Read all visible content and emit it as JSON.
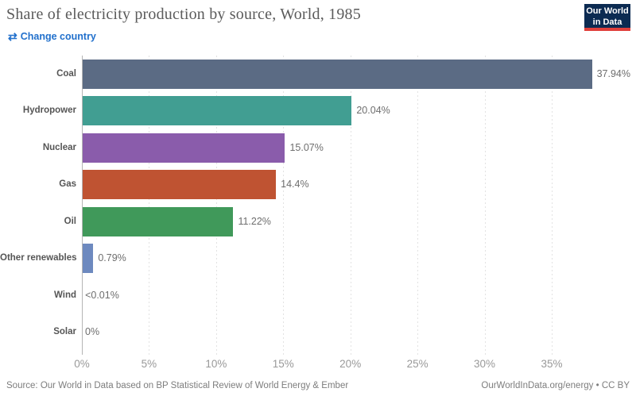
{
  "header": {
    "title": "Share of electricity production by source, World, 1985",
    "change_country_label": "Change country",
    "logo": {
      "line1": "Our World",
      "line2": "in Data"
    }
  },
  "chart_data": {
    "type": "bar",
    "orientation": "horizontal",
    "title": "Share of electricity production by source, World, 1985",
    "categories": [
      "Coal",
      "Hydropower",
      "Nuclear",
      "Gas",
      "Oil",
      "Other renewables",
      "Wind",
      "Solar"
    ],
    "values": [
      37.94,
      20.04,
      15.07,
      14.4,
      11.22,
      0.79,
      0.005,
      0
    ],
    "value_labels": [
      "37.94%",
      "20.04%",
      "15.07%",
      "14.4%",
      "11.22%",
      "0.79%",
      "<0.01%",
      "0%"
    ],
    "bar_colors": [
      "#5b6b84",
      "#419e92",
      "#8a5cab",
      "#bf5332",
      "#40995a",
      "#6d89bf",
      "#6d89bf",
      "#6d89bf"
    ],
    "x_ticks": [
      "0%",
      "5%",
      "10%",
      "15%",
      "20%",
      "25%",
      "30%",
      "35%"
    ],
    "x_tick_values": [
      0,
      5,
      10,
      15,
      20,
      25,
      30,
      35
    ],
    "xlim": [
      0,
      39.8
    ],
    "xlabel": "",
    "ylabel": "",
    "grid": true,
    "legend": false
  },
  "footer": {
    "source": "Source: Our World in Data based on BP Statistical Review of World Energy & Ember",
    "license": "OurWorldInData.org/energy • CC BY"
  },
  "colors": {
    "link_blue": "#2170cc",
    "logo_navy": "#0c2b52",
    "logo_red": "#e0403c",
    "title_gray": "#5b5b5b",
    "gridline": "#e2e2e2",
    "axis_line": "#b5b5b5",
    "category_label": "#555555",
    "value_label": "#6e6e6e",
    "tick_label": "#999999",
    "footer_text": "#7d7d7d"
  }
}
